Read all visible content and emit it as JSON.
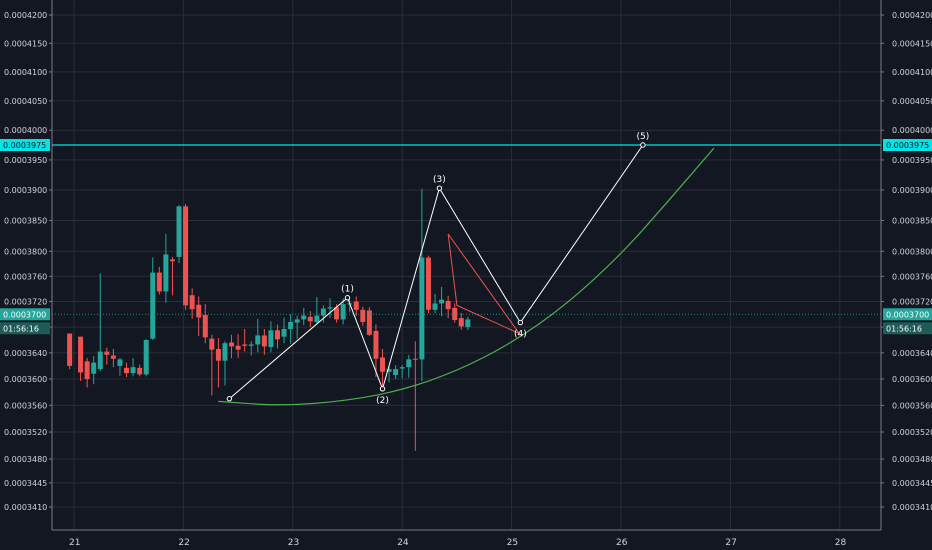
{
  "chart_data": {
    "type": "candlestick",
    "grid": true,
    "x_ticks": [
      "21",
      "22",
      "23",
      "24",
      "25",
      "26",
      "27",
      "28"
    ],
    "y_ticks": [
      "0.0004200",
      "0.0004150",
      "0.0004100",
      "0.0004050",
      "0.0004000",
      "0.0003950",
      "0.0003900",
      "0.0003850",
      "0.0003800",
      "0.0003760",
      "0.0003720",
      "0.0003680",
      "0.0003640",
      "0.0003600",
      "0.0003560",
      "0.0003520",
      "0.0003480",
      "0.0003445",
      "0.0003410"
    ],
    "y_scale": "log",
    "colors": {
      "background": "#131722",
      "grid": "#2a2e39",
      "up": "#26a69a",
      "down": "#ef5350",
      "level_line": "#00e5e5",
      "wave_line": "#ffffff",
      "triangle": "#ef5350",
      "curve": "#4caf50"
    },
    "candles": [
      {
        "x": 20.96,
        "o": 0.000367,
        "h": 0.000367,
        "l": 0.0003615,
        "c": 0.000362
      },
      {
        "x": 21.06,
        "o": 0.0003665,
        "h": 0.0003665,
        "l": 0.0003597,
        "c": 0.000361
      },
      {
        "x": 21.12,
        "o": 0.0003627,
        "h": 0.0003632,
        "l": 0.0003587,
        "c": 0.00036
      },
      {
        "x": 21.18,
        "o": 0.0003608,
        "h": 0.0003635,
        "l": 0.0003592,
        "c": 0.0003625
      },
      {
        "x": 21.24,
        "o": 0.0003615,
        "h": 0.0003765,
        "l": 0.0003612,
        "c": 0.0003642
      },
      {
        "x": 21.3,
        "o": 0.0003642,
        "h": 0.0003648,
        "l": 0.0003622,
        "c": 0.0003637
      },
      {
        "x": 21.36,
        "o": 0.0003636,
        "h": 0.0003646,
        "l": 0.0003618,
        "c": 0.0003631
      },
      {
        "x": 21.42,
        "o": 0.000362,
        "h": 0.0003632,
        "l": 0.0003605,
        "c": 0.000363
      },
      {
        "x": 21.48,
        "o": 0.0003617,
        "h": 0.0003625,
        "l": 0.0003603,
        "c": 0.0003609
      },
      {
        "x": 21.54,
        "o": 0.0003609,
        "h": 0.0003632,
        "l": 0.0003604,
        "c": 0.0003618
      },
      {
        "x": 21.6,
        "o": 0.0003617,
        "h": 0.0003622,
        "l": 0.0003604,
        "c": 0.0003607
      },
      {
        "x": 21.66,
        "o": 0.0003607,
        "h": 0.0003661,
        "l": 0.0003604,
        "c": 0.000366
      },
      {
        "x": 21.72,
        "o": 0.0003662,
        "h": 0.000379,
        "l": 0.000366,
        "c": 0.0003766
      },
      {
        "x": 21.78,
        "o": 0.0003766,
        "h": 0.0003775,
        "l": 0.0003731,
        "c": 0.0003736
      },
      {
        "x": 21.84,
        "o": 0.0003736,
        "h": 0.0003828,
        "l": 0.0003718,
        "c": 0.0003795
      },
      {
        "x": 21.9,
        "o": 0.0003787,
        "h": 0.0003791,
        "l": 0.000373,
        "c": 0.0003784
      },
      {
        "x": 21.96,
        "o": 0.0003791,
        "h": 0.0003875,
        "l": 0.0003781,
        "c": 0.0003873
      },
      {
        "x": 22.02,
        "o": 0.0003873,
        "h": 0.0003877,
        "l": 0.0003707,
        "c": 0.0003714
      },
      {
        "x": 22.08,
        "o": 0.000373,
        "h": 0.0003741,
        "l": 0.0003693,
        "c": 0.0003708
      },
      {
        "x": 22.14,
        "o": 0.0003715,
        "h": 0.0003728,
        "l": 0.0003666,
        "c": 0.0003695
      },
      {
        "x": 22.2,
        "o": 0.0003699,
        "h": 0.0003716,
        "l": 0.0003655,
        "c": 0.0003664
      },
      {
        "x": 22.26,
        "o": 0.0003662,
        "h": 0.0003668,
        "l": 0.0003575,
        "c": 0.0003645
      },
      {
        "x": 22.32,
        "o": 0.0003646,
        "h": 0.0003663,
        "l": 0.0003587,
        "c": 0.0003628
      },
      {
        "x": 22.38,
        "o": 0.0003628,
        "h": 0.0003658,
        "l": 0.000359,
        "c": 0.0003655
      },
      {
        "x": 22.44,
        "o": 0.0003656,
        "h": 0.0003668,
        "l": 0.0003632,
        "c": 0.000365
      },
      {
        "x": 22.5,
        "o": 0.0003651,
        "h": 0.0003669,
        "l": 0.0003632,
        "c": 0.0003645
      },
      {
        "x": 22.56,
        "o": 0.0003653,
        "h": 0.0003677,
        "l": 0.0003642,
        "c": 0.0003651
      },
      {
        "x": 22.62,
        "o": 0.0003651,
        "h": 0.0003658,
        "l": 0.0003636,
        "c": 0.0003653
      },
      {
        "x": 22.68,
        "o": 0.0003653,
        "h": 0.0003693,
        "l": 0.0003641,
        "c": 0.0003667
      },
      {
        "x": 22.74,
        "o": 0.0003667,
        "h": 0.0003677,
        "l": 0.0003637,
        "c": 0.000365
      },
      {
        "x": 22.8,
        "o": 0.0003649,
        "h": 0.0003689,
        "l": 0.0003641,
        "c": 0.0003675
      },
      {
        "x": 22.86,
        "o": 0.0003675,
        "h": 0.0003684,
        "l": 0.0003647,
        "c": 0.0003661
      },
      {
        "x": 22.92,
        "o": 0.0003665,
        "h": 0.0003695,
        "l": 0.0003655,
        "c": 0.0003677
      },
      {
        "x": 22.98,
        "o": 0.0003677,
        "h": 0.00037,
        "l": 0.0003654,
        "c": 0.0003688
      },
      {
        "x": 23.04,
        "o": 0.0003687,
        "h": 0.0003698,
        "l": 0.0003662,
        "c": 0.0003692
      },
      {
        "x": 23.1,
        "o": 0.0003692,
        "h": 0.000371,
        "l": 0.0003683,
        "c": 0.0003698
      },
      {
        "x": 23.16,
        "o": 0.0003696,
        "h": 0.0003705,
        "l": 0.000368,
        "c": 0.0003689
      },
      {
        "x": 23.22,
        "o": 0.0003688,
        "h": 0.0003727,
        "l": 0.0003684,
        "c": 0.0003698
      },
      {
        "x": 23.28,
        "o": 0.0003698,
        "h": 0.0003714,
        "l": 0.0003687,
        "c": 0.0003709
      },
      {
        "x": 23.34,
        "o": 0.0003709,
        "h": 0.0003725,
        "l": 0.0003694,
        "c": 0.0003711
      },
      {
        "x": 23.4,
        "o": 0.0003711,
        "h": 0.0003716,
        "l": 0.0003687,
        "c": 0.0003692
      },
      {
        "x": 23.46,
        "o": 0.0003692,
        "h": 0.0003725,
        "l": 0.0003684,
        "c": 0.0003716
      },
      {
        "x": 23.52,
        "o": 0.0003716,
        "h": 0.0003724,
        "l": 0.0003703,
        "c": 0.0003717
      },
      {
        "x": 23.58,
        "o": 0.000372,
        "h": 0.0003728,
        "l": 0.0003697,
        "c": 0.0003707
      },
      {
        "x": 23.64,
        "o": 0.0003707,
        "h": 0.0003712,
        "l": 0.0003682,
        "c": 0.0003688
      },
      {
        "x": 23.7,
        "o": 0.0003706,
        "h": 0.0003711,
        "l": 0.0003666,
        "c": 0.0003668
      },
      {
        "x": 23.76,
        "o": 0.0003674,
        "h": 0.0003684,
        "l": 0.0003603,
        "c": 0.0003631
      },
      {
        "x": 23.82,
        "o": 0.0003633,
        "h": 0.0003646,
        "l": 0.0003585,
        "c": 0.0003611
      },
      {
        "x": 23.88,
        "o": 0.0003611,
        "h": 0.000362,
        "l": 0.0003595,
        "c": 0.0003615
      },
      {
        "x": 23.94,
        "o": 0.0003606,
        "h": 0.0003621,
        "l": 0.00036,
        "c": 0.0003615
      },
      {
        "x": 24.0,
        "o": 0.0003616,
        "h": 0.0003621,
        "l": 0.0003601,
        "c": 0.0003618
      },
      {
        "x": 24.06,
        "o": 0.0003618,
        "h": 0.0003637,
        "l": 0.0003602,
        "c": 0.000363
      },
      {
        "x": 24.12,
        "o": 0.0003631,
        "h": 0.0003658,
        "l": 0.0003492,
        "c": 0.000363
      },
      {
        "x": 24.18,
        "o": 0.000363,
        "h": 0.0003902,
        "l": 0.0003597,
        "c": 0.000379
      },
      {
        "x": 24.24,
        "o": 0.000379,
        "h": 0.0003793,
        "l": 0.0003702,
        "c": 0.0003707
      },
      {
        "x": 24.3,
        "o": 0.0003707,
        "h": 0.0003732,
        "l": 0.0003702,
        "c": 0.0003717
      },
      {
        "x": 24.36,
        "o": 0.0003717,
        "h": 0.0003743,
        "l": 0.0003697,
        "c": 0.0003723
      },
      {
        "x": 24.42,
        "o": 0.0003721,
        "h": 0.0003729,
        "l": 0.0003694,
        "c": 0.0003708
      },
      {
        "x": 24.48,
        "o": 0.000371,
        "h": 0.0003717,
        "l": 0.0003687,
        "c": 0.0003691
      },
      {
        "x": 24.54,
        "o": 0.0003694,
        "h": 0.0003702,
        "l": 0.0003676,
        "c": 0.0003681
      },
      {
        "x": 24.6,
        "o": 0.000368,
        "h": 0.0003696,
        "l": 0.0003675,
        "c": 0.0003692
      }
    ],
    "level_line": {
      "value": 0.0003975,
      "label": "0.0003975"
    },
    "current_price_line": {
      "value": 0.00037,
      "label": "0.0003700",
      "timer": "01:56:16"
    },
    "wave_points": [
      {
        "label": "",
        "x": 22.42,
        "y": 0.000357
      },
      {
        "label": "(1)",
        "x": 23.5,
        "y": 0.0003726
      },
      {
        "label": "(2)",
        "x": 23.82,
        "y": 0.0003585
      },
      {
        "label": "(3)",
        "x": 24.34,
        "y": 0.0003903
      },
      {
        "label": "(4)",
        "x": 25.08,
        "y": 0.0003687
      },
      {
        "label": "(5)",
        "x": 26.2,
        "y": 0.0003975
      }
    ],
    "triangle": [
      {
        "x": 24.42,
        "y": 0.0003828
      },
      {
        "x": 24.5,
        "y": 0.0003714
      },
      {
        "x": 25.07,
        "y": 0.000367
      }
    ],
    "curve": [
      {
        "x": 22.32,
        "y": 0.0003566
      },
      {
        "x": 22.9,
        "y": 0.0003559
      },
      {
        "x": 23.5,
        "y": 0.0003567
      },
      {
        "x": 24.0,
        "y": 0.0003583
      },
      {
        "x": 24.5,
        "y": 0.0003612
      },
      {
        "x": 25.0,
        "y": 0.0003655
      },
      {
        "x": 25.5,
        "y": 0.0003715
      },
      {
        "x": 26.0,
        "y": 0.0003795
      },
      {
        "x": 26.4,
        "y": 0.0003875
      },
      {
        "x": 26.85,
        "y": 0.000397
      }
    ]
  }
}
